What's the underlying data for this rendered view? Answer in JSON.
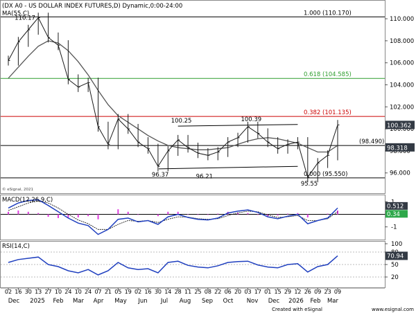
{
  "colors": {
    "price": "#1a1a1a",
    "ma": "#555555",
    "fib_top": "#000000",
    "fib_618": "#2e9e2e",
    "fib_382": "#cc0000",
    "level": "#000000",
    "macd_line": "#1f3fbf",
    "macd_signal": "#000000",
    "hist": "#e040e0",
    "rsi": "#1f3fbf",
    "tag_bg": "#333a44",
    "tag_hist": "#e040e0",
    "tag_green": "#2ea84a",
    "grid": "#d8d8d8"
  },
  "chart_data": [
    {
      "type": "line",
      "title": "(DX A0 - US DOLLAR INDEX FUTURES,D) Dynamic,0:00-24:00",
      "subtitle": "MA(55,C)",
      "copyright": "© eSignal, 2021",
      "x_months": [
        "Dec",
        "2025",
        "Feb",
        "Mar",
        "Apr",
        "May",
        "Jun",
        "Jul",
        "Aug",
        "Sep",
        "Oct",
        "Nov",
        "Dec",
        "2026",
        "Feb",
        "Mar"
      ],
      "x_ticks": [
        "02",
        "16",
        "30",
        "13",
        "27",
        "10",
        "24",
        "10",
        "24",
        "07",
        "21",
        "05",
        "19",
        "02",
        "16",
        "30",
        "14",
        "28",
        "11",
        "25",
        "08",
        "22",
        "06",
        "20",
        "03",
        "17",
        "01",
        "15",
        "29",
        "12",
        "26",
        "09",
        "23",
        "09"
      ],
      "y_ticks": [
        96,
        98,
        100,
        102,
        104,
        106,
        108,
        110
      ],
      "ylim": [
        94.6,
        111.2
      ],
      "price_series": {
        "name": "DX A0",
        "dates": [
          "2024-12-02",
          "2024-12-16",
          "2024-12-30",
          "2025-01-13",
          "2025-01-27",
          "2025-02-10",
          "2025-02-24",
          "2025-03-10",
          "2025-03-24",
          "2025-04-07",
          "2025-04-21",
          "2025-05-05",
          "2025-05-19",
          "2025-06-02",
          "2025-06-16",
          "2025-06-30",
          "2025-07-14",
          "2025-07-28",
          "2025-08-11",
          "2025-08-25",
          "2025-09-08",
          "2025-09-22",
          "2025-10-06",
          "2025-10-20",
          "2025-11-03",
          "2025-11-17",
          "2025-12-01",
          "2025-12-15",
          "2025-12-29",
          "2026-01-12",
          "2026-01-26",
          "2026-02-09",
          "2026-02-23",
          "2026-03-09"
        ],
        "values": [
          106.2,
          107.9,
          109.0,
          110.1,
          108.3,
          107.6,
          104.5,
          103.8,
          104.2,
          100.2,
          98.6,
          100.9,
          100.0,
          98.8,
          98.2,
          96.6,
          98.0,
          99.0,
          98.3,
          97.8,
          97.6,
          97.9,
          98.8,
          99.2,
          100.2,
          99.6,
          98.8,
          98.2,
          98.6,
          98.8,
          95.6,
          96.9,
          97.6,
          100.36
        ]
      },
      "ma_series": {
        "name": "MA(55,C)",
        "values": [
          104.6,
          105.6,
          106.6,
          107.5,
          108.0,
          107.8,
          107.1,
          106.1,
          104.9,
          103.5,
          102.2,
          101.2,
          100.6,
          100.0,
          99.4,
          98.9,
          98.5,
          98.3,
          98.2,
          98.1,
          98.1,
          98.2,
          98.3,
          98.6,
          98.9,
          99.1,
          99.2,
          99.1,
          98.9,
          98.7,
          98.3,
          97.9,
          97.9,
          98.5
        ]
      },
      "fib_levels": [
        {
          "label": "1.000 (110.170)",
          "value": 110.17
        },
        {
          "label": "0.618 (104.585)",
          "value": 104.585
        },
        {
          "label": "0.382 (101.135)",
          "value": 101.135
        },
        {
          "label": "0.000 (95.550)",
          "value": 95.55
        }
      ],
      "levels": [
        {
          "label": "(98.490)",
          "value": 98.49
        }
      ],
      "annotations": [
        {
          "text": "110.17",
          "date": "2025-01-13",
          "value": 110.17
        },
        {
          "text": "100.25",
          "date": "2025-07-28",
          "value": 100.25
        },
        {
          "text": "100.39",
          "date": "2025-11-03",
          "value": 100.39
        },
        {
          "text": "96.37",
          "date": "2025-07-01",
          "value": 96.37
        },
        {
          "text": "96.21",
          "date": "2025-09-01",
          "value": 96.21
        },
        {
          "text": "95.55",
          "date": "2026-01-26",
          "value": 95.55
        }
      ],
      "channel": {
        "upper": [
          {
            "date": "2025-07-28",
            "value": 100.25
          },
          {
            "date": "2026-01-12",
            "value": 100.4
          }
        ],
        "lower": [
          {
            "date": "2025-07-01",
            "value": 96.37
          },
          {
            "date": "2026-01-12",
            "value": 96.6
          }
        ]
      },
      "price_tags": [
        "100.362",
        "98.318"
      ]
    },
    {
      "type": "line",
      "title": "MACD(12,26,9,C)",
      "y_ticks": [
        1,
        0,
        -1
      ],
      "ylim": [
        -1.9,
        1.4
      ],
      "macd": [
        0.5,
        0.9,
        1.1,
        1.15,
        0.7,
        0.2,
        -0.3,
        -0.7,
        -0.9,
        -1.6,
        -1.2,
        -0.4,
        -0.3,
        -0.6,
        -0.5,
        -0.8,
        -0.2,
        0.0,
        -0.25,
        -0.4,
        -0.45,
        -0.3,
        0.1,
        0.25,
        0.35,
        0.15,
        -0.2,
        -0.35,
        -0.15,
        0.0,
        -0.75,
        -0.5,
        -0.3,
        0.5
      ],
      "signal": [
        0.3,
        0.6,
        0.9,
        1.05,
        0.9,
        0.5,
        0.0,
        -0.45,
        -0.75,
        -1.2,
        -1.2,
        -0.8,
        -0.5,
        -0.55,
        -0.5,
        -0.65,
        -0.4,
        -0.2,
        -0.22,
        -0.35,
        -0.4,
        -0.35,
        -0.1,
        0.12,
        0.25,
        0.2,
        -0.05,
        -0.25,
        -0.2,
        -0.1,
        -0.5,
        -0.5,
        -0.35,
        0.2
      ],
      "tags": [
        "0.512",
        "0.34"
      ]
    },
    {
      "type": "line",
      "title": "RSI(14,C)",
      "y_ticks": [
        100,
        80,
        50,
        20
      ],
      "ylim": [
        0,
        100
      ],
      "rsi": [
        55,
        62,
        65,
        68,
        50,
        45,
        35,
        30,
        38,
        25,
        35,
        55,
        42,
        38,
        40,
        30,
        55,
        58,
        48,
        44,
        42,
        47,
        55,
        57,
        58,
        49,
        44,
        42,
        50,
        52,
        32,
        45,
        50,
        70.94
      ],
      "tag": "70.94"
    }
  ],
  "footer": {
    "left": "Created with eSignal",
    "right": "www.esignal.com"
  }
}
